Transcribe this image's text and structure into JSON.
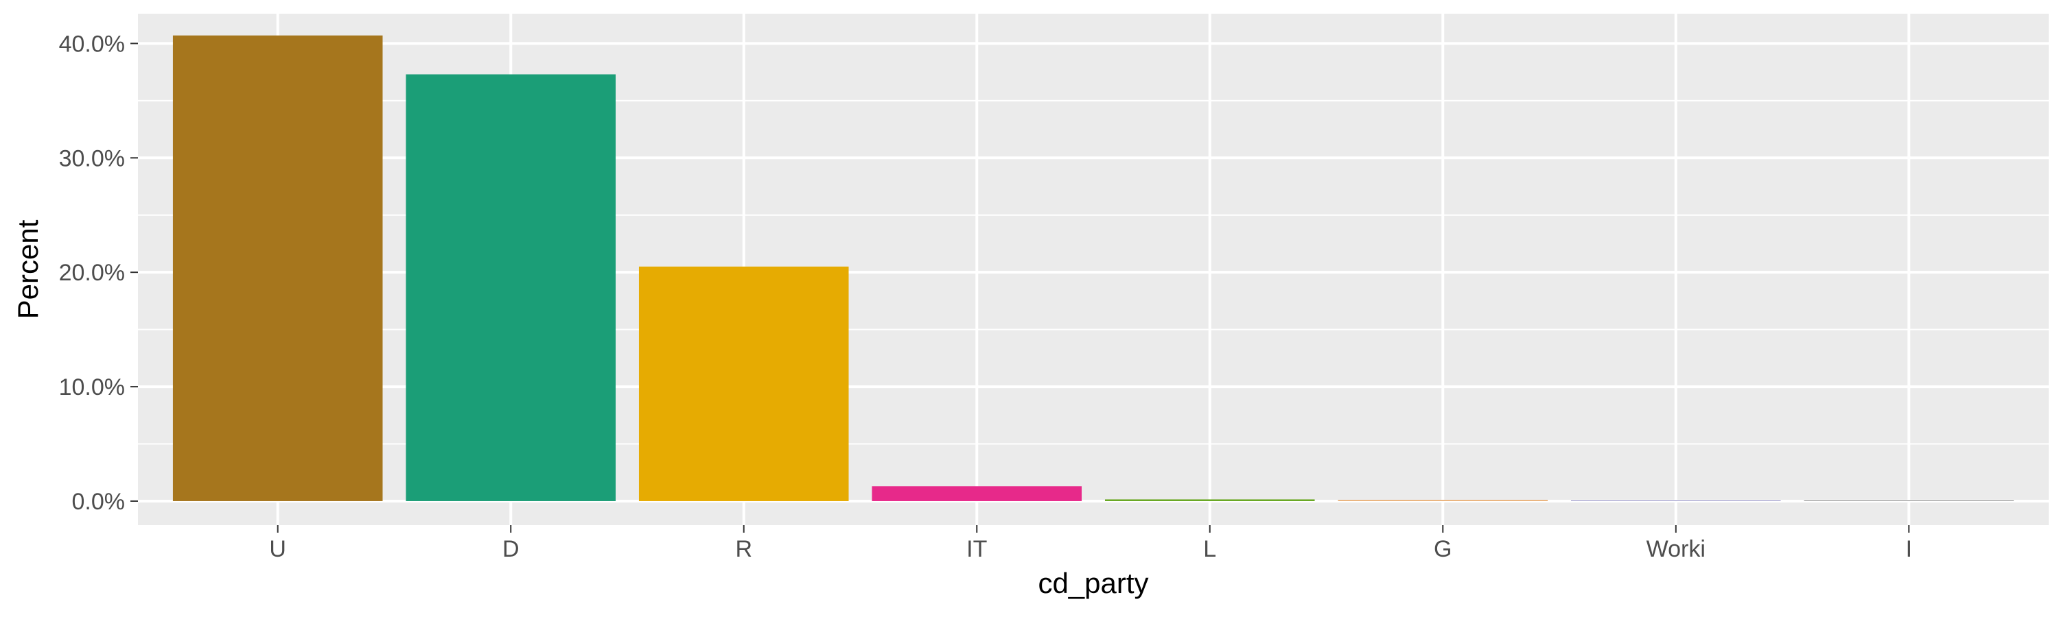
{
  "chart_data": {
    "type": "bar",
    "title": "",
    "xlabel": "cd_party",
    "ylabel": "Percent",
    "categories": [
      "U",
      "D",
      "R",
      "IT",
      "L",
      "G",
      "Worki",
      "I"
    ],
    "values": [
      0.407,
      0.373,
      0.205,
      0.013,
      0.0015,
      0.001,
      0.0002,
      0.0001
    ],
    "colors": [
      "#A6761D",
      "#1B9E77",
      "#E6AB02",
      "#E7298A",
      "#66A61E",
      "#E6A86A",
      "#7570B3",
      "#666666"
    ],
    "yticks": [
      0,
      0.1,
      0.2,
      0.3,
      0.4
    ],
    "ytick_labels": [
      "0.0%",
      "10.0%",
      "20.0%",
      "30.0%",
      "40.0%"
    ],
    "ylim": [
      -0.021,
      0.426
    ],
    "grid": true,
    "legend": "none",
    "panel_background": "#EBEBEB",
    "gridline_color": "#FFFFFF"
  }
}
